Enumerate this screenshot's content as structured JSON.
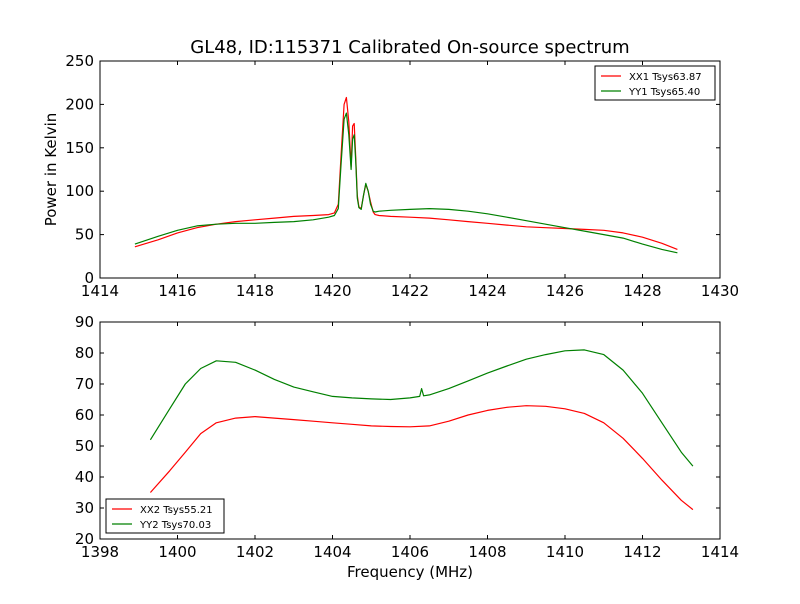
{
  "title": "GL48, ID:115371 Calibrated On-source spectrum",
  "colors": {
    "xx": "#ff0000",
    "yy": "#008000"
  },
  "chart_data": [
    {
      "type": "line",
      "ylabel": "Power in Kelvin",
      "xlabel": "",
      "xlim": [
        1414,
        1430
      ],
      "ylim": [
        0,
        250
      ],
      "xticks": [
        1414,
        1416,
        1418,
        1420,
        1422,
        1424,
        1426,
        1428,
        1430
      ],
      "yticks": [
        0,
        50,
        100,
        150,
        200,
        250
      ],
      "grid": false,
      "legend_position": "top-right",
      "series": [
        {
          "name": "XX1 Tsys63.87",
          "color": "#ff0000",
          "x": [
            1414.9,
            1415.5,
            1416.0,
            1416.5,
            1417.0,
            1417.5,
            1418.0,
            1418.5,
            1419.0,
            1419.5,
            1419.9,
            1420.05,
            1420.15,
            1420.22,
            1420.3,
            1420.36,
            1420.42,
            1420.48,
            1420.52,
            1420.56,
            1420.6,
            1420.64,
            1420.68,
            1420.74,
            1420.8,
            1420.86,
            1420.92,
            1420.98,
            1421.05,
            1421.1,
            1421.2,
            1421.5,
            1422.0,
            1422.5,
            1423.0,
            1423.5,
            1424.0,
            1424.5,
            1425.0,
            1425.5,
            1426.0,
            1426.5,
            1427.0,
            1427.5,
            1428.0,
            1428.5,
            1428.9
          ],
          "y": [
            36,
            44,
            52,
            58,
            62,
            65,
            67,
            69,
            71,
            72,
            73,
            75,
            85,
            140,
            200,
            208,
            180,
            128,
            175,
            178,
            140,
            95,
            82,
            80,
            95,
            108,
            100,
            88,
            76,
            73,
            72,
            71,
            70,
            69,
            67,
            65,
            63,
            61,
            59,
            58,
            57,
            56,
            55,
            52,
            47,
            40,
            33
          ]
        },
        {
          "name": "YY1 Tsys65.40",
          "color": "#008000",
          "x": [
            1414.9,
            1415.5,
            1416.0,
            1416.5,
            1417.0,
            1417.5,
            1418.0,
            1418.5,
            1419.0,
            1419.5,
            1419.9,
            1420.05,
            1420.15,
            1420.22,
            1420.3,
            1420.36,
            1420.42,
            1420.48,
            1420.52,
            1420.56,
            1420.6,
            1420.64,
            1420.68,
            1420.74,
            1420.8,
            1420.86,
            1420.92,
            1420.98,
            1421.05,
            1421.1,
            1421.2,
            1421.5,
            1422.0,
            1422.5,
            1423.0,
            1423.5,
            1424.0,
            1424.5,
            1425.0,
            1425.5,
            1426.0,
            1426.5,
            1427.0,
            1427.5,
            1428.0,
            1428.5,
            1428.9
          ],
          "y": [
            39,
            48,
            55,
            60,
            62,
            63,
            63,
            64,
            65,
            67,
            70,
            72,
            80,
            130,
            183,
            190,
            165,
            125,
            160,
            165,
            135,
            92,
            81,
            79,
            95,
            109,
            100,
            85,
            77,
            76,
            77,
            78,
            79,
            80,
            79,
            77,
            74,
            70,
            66,
            62,
            58,
            54,
            50,
            46,
            39,
            33,
            29
          ]
        }
      ]
    },
    {
      "type": "line",
      "ylabel": "",
      "xlabel": "Frequency (MHz)",
      "xlim": [
        1398,
        1414
      ],
      "ylim": [
        20,
        90
      ],
      "xticks": [
        1398,
        1400,
        1402,
        1404,
        1406,
        1408,
        1410,
        1412,
        1414
      ],
      "yticks": [
        20,
        30,
        40,
        50,
        60,
        70,
        80,
        90
      ],
      "grid": false,
      "legend_position": "bottom-left",
      "series": [
        {
          "name": "XX2 Tsys55.21",
          "color": "#ff0000",
          "x": [
            1399.3,
            1399.8,
            1400.2,
            1400.6,
            1401.0,
            1401.5,
            1402.0,
            1402.5,
            1403.0,
            1403.5,
            1404.0,
            1404.5,
            1405.0,
            1405.5,
            1406.0,
            1406.5,
            1407.0,
            1407.5,
            1408.0,
            1408.5,
            1409.0,
            1409.5,
            1410.0,
            1410.5,
            1411.0,
            1411.5,
            1412.0,
            1412.5,
            1413.0,
            1413.3
          ],
          "y": [
            35,
            42,
            48,
            54,
            57.5,
            59,
            59.5,
            59,
            58.5,
            58,
            57.5,
            57,
            56.5,
            56.3,
            56.2,
            56.5,
            58,
            60,
            61.5,
            62.5,
            63,
            62.8,
            62,
            60.5,
            57.5,
            52.5,
            46,
            39,
            32.5,
            29.5
          ]
        },
        {
          "name": "YY2 Tsys70.03",
          "color": "#008000",
          "x": [
            1399.3,
            1399.8,
            1400.2,
            1400.6,
            1401.0,
            1401.5,
            1402.0,
            1402.5,
            1403.0,
            1403.5,
            1404.0,
            1404.5,
            1405.0,
            1405.5,
            1406.0,
            1406.25,
            1406.3,
            1406.35,
            1406.5,
            1407.0,
            1407.5,
            1408.0,
            1408.5,
            1409.0,
            1409.5,
            1410.0,
            1410.5,
            1411.0,
            1411.5,
            1412.0,
            1412.5,
            1413.0,
            1413.3
          ],
          "y": [
            52,
            62,
            70,
            75,
            77.5,
            77,
            74.5,
            71.5,
            69,
            67.5,
            66,
            65.5,
            65.2,
            65,
            65.5,
            66,
            68.5,
            66.2,
            66.5,
            68.5,
            71,
            73.5,
            75.8,
            78,
            79.5,
            80.7,
            81,
            79.5,
            74.5,
            67,
            57.5,
            48,
            43.5
          ]
        }
      ]
    }
  ]
}
